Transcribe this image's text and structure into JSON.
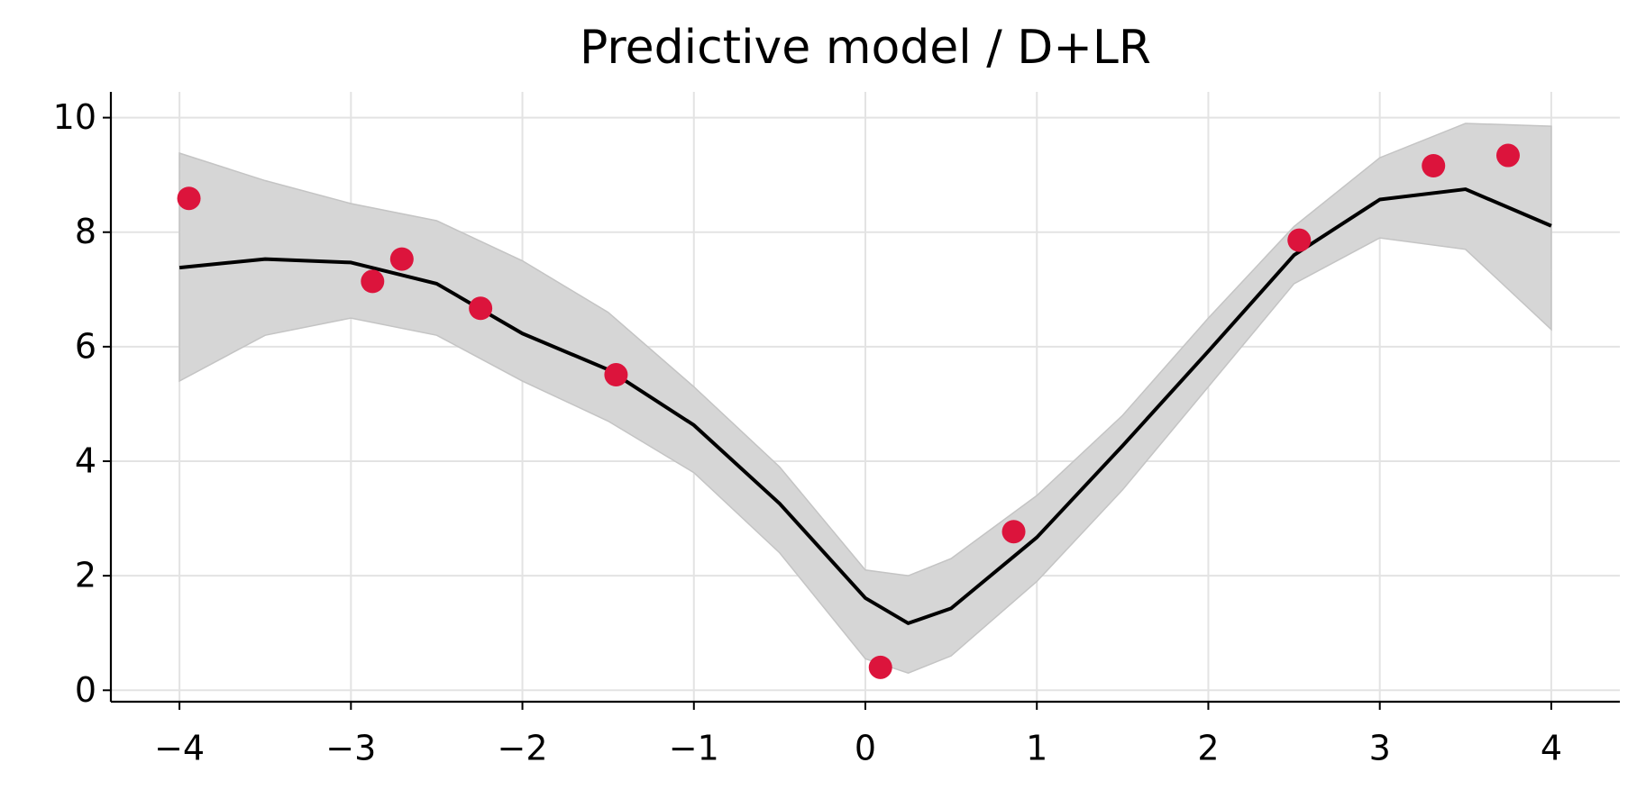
{
  "chart_data": {
    "type": "line",
    "title": "Predictive model / D+LR",
    "x": [
      -4,
      -3.5,
      -3,
      -2.5,
      -2,
      -1.5,
      -1,
      -0.5,
      0,
      0.25,
      0.5,
      1,
      1.5,
      2,
      2.5,
      3,
      3.5,
      4
    ],
    "series": [
      {
        "color": "#000000",
        "values": [
          7.38,
          7.53,
          7.47,
          7.1,
          6.23,
          5.6,
          4.63,
          3.26,
          1.61,
          1.17,
          1.43,
          2.67,
          4.27,
          5.92,
          7.6,
          8.57,
          8.75,
          8.11
        ]
      }
    ],
    "band": {
      "color": "#d6d6d6",
      "lower": [
        5.4,
        6.2,
        6.5,
        6.2,
        5.4,
        4.7,
        3.8,
        2.4,
        0.55,
        0.3,
        0.6,
        1.9,
        3.5,
        5.3,
        7.1,
        7.9,
        7.7,
        6.3
      ],
      "upper": [
        9.38,
        8.9,
        8.5,
        8.2,
        7.5,
        6.6,
        5.3,
        3.9,
        2.1,
        2.0,
        2.3,
        3.4,
        4.8,
        6.5,
        8.1,
        9.3,
        9.9,
        9.85
      ]
    },
    "points": {
      "color": "#dc143c",
      "x": [
        -3.945,
        -2.874,
        -2.703,
        -2.244,
        -1.454,
        0.088,
        0.865,
        2.53,
        3.313,
        3.748
      ],
      "y": [
        8.59,
        7.14,
        7.53,
        6.67,
        5.51,
        0.4,
        2.77,
        7.86,
        9.16,
        9.34
      ]
    },
    "xlim": [
      -4.4,
      4.4
    ],
    "ylim": [
      -0.2,
      10.45
    ],
    "xticks": [
      {
        "value": -4,
        "label": "−4"
      },
      {
        "value": -3,
        "label": "−3"
      },
      {
        "value": -2,
        "label": "−2"
      },
      {
        "value": -1,
        "label": "−1"
      },
      0,
      1,
      2,
      3,
      4
    ],
    "yticks": [
      0,
      2,
      4,
      6,
      8,
      10
    ],
    "grid": true
  }
}
